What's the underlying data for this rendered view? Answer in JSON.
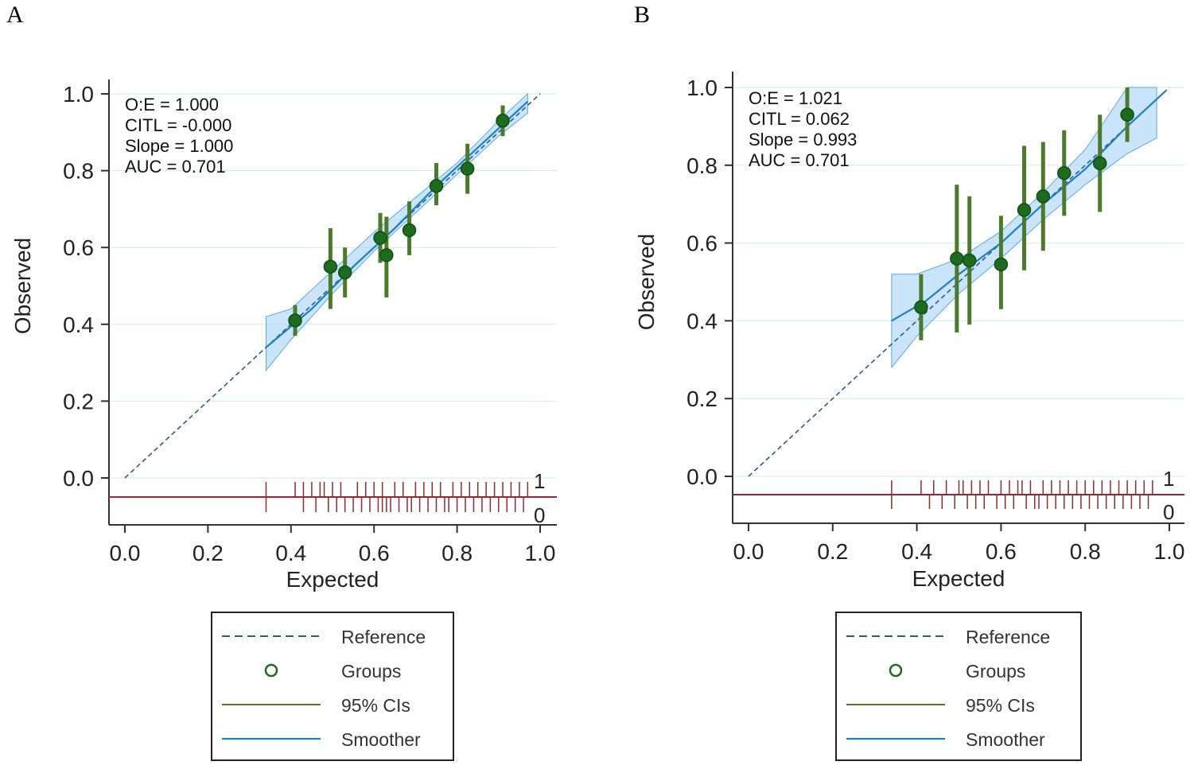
{
  "panels": [
    {
      "letter": "A",
      "chart_data": {
        "type": "scatter",
        "xlabel": "Expected",
        "ylabel": "Observed",
        "xlim": [
          0,
          1
        ],
        "ylim": [
          -0.1,
          1.0
        ],
        "xticks": [
          "0.0",
          "0.2",
          "0.4",
          "0.6",
          "0.8",
          "1.0"
        ],
        "yticks": [
          "0.0",
          "0.2",
          "0.4",
          "0.6",
          "0.8",
          "1.0"
        ],
        "stats": [
          "O:E = 1.000",
          "CITL = -0.000",
          "Slope = 1.000",
          "AUC = 0.701"
        ],
        "reference": [
          [
            0,
            0
          ],
          [
            1,
            1
          ]
        ],
        "smoother": [
          [
            0.34,
            0.34
          ],
          [
            0.45,
            0.44
          ],
          [
            0.55,
            0.55
          ],
          [
            0.65,
            0.65
          ],
          [
            0.75,
            0.76
          ],
          [
            0.85,
            0.86
          ],
          [
            0.97,
            0.98
          ]
        ],
        "smoother_band": {
          "x": [
            0.34,
            0.4,
            0.5,
            0.6,
            0.7,
            0.8,
            0.9,
            0.97
          ],
          "lower": [
            0.28,
            0.36,
            0.48,
            0.59,
            0.69,
            0.79,
            0.89,
            0.95
          ],
          "upper": [
            0.42,
            0.44,
            0.54,
            0.64,
            0.73,
            0.82,
            0.93,
            1.0
          ]
        },
        "groups": [
          {
            "x": 0.41,
            "y": 0.41,
            "lo": 0.37,
            "hi": 0.45
          },
          {
            "x": 0.495,
            "y": 0.55,
            "lo": 0.44,
            "hi": 0.65
          },
          {
            "x": 0.53,
            "y": 0.535,
            "lo": 0.47,
            "hi": 0.6
          },
          {
            "x": 0.615,
            "y": 0.625,
            "lo": 0.56,
            "hi": 0.69
          },
          {
            "x": 0.63,
            "y": 0.58,
            "lo": 0.47,
            "hi": 0.68
          },
          {
            "x": 0.685,
            "y": 0.645,
            "lo": 0.58,
            "hi": 0.72
          },
          {
            "x": 0.75,
            "y": 0.76,
            "lo": 0.71,
            "hi": 0.82
          },
          {
            "x": 0.825,
            "y": 0.805,
            "lo": 0.74,
            "hi": 0.87
          },
          {
            "x": 0.91,
            "y": 0.93,
            "lo": 0.89,
            "hi": 0.97
          }
        ],
        "rug_events": [
          0.34,
          0.41,
          0.43,
          0.45,
          0.47,
          0.48,
          0.5,
          0.52,
          0.56,
          0.58,
          0.6,
          0.62,
          0.65,
          0.67,
          0.7,
          0.72,
          0.74,
          0.76,
          0.79,
          0.81,
          0.83,
          0.85,
          0.87,
          0.89,
          0.91,
          0.93,
          0.95,
          0.97
        ],
        "rug_nonevents": [
          0.34,
          0.43,
          0.46,
          0.49,
          0.51,
          0.53,
          0.55,
          0.57,
          0.59,
          0.61,
          0.62,
          0.63,
          0.64,
          0.66,
          0.68,
          0.69,
          0.71,
          0.73,
          0.75,
          0.77,
          0.78,
          0.8,
          0.82,
          0.84,
          0.86,
          0.88,
          0.9,
          0.92,
          0.94,
          0.96
        ],
        "rug_top_label": "1",
        "rug_bottom_label": "0"
      }
    },
    {
      "letter": "B",
      "chart_data": {
        "type": "scatter",
        "xlabel": "Expected",
        "ylabel": "Observed",
        "xlim": [
          0,
          1
        ],
        "ylim": [
          -0.1,
          1.0
        ],
        "xticks": [
          "0.0",
          "0.2",
          "0.4",
          "0.6",
          "0.8",
          "1.0"
        ],
        "yticks": [
          "0.0",
          "0.2",
          "0.4",
          "0.6",
          "0.8",
          "1.0"
        ],
        "stats": [
          "O:E = 1.021",
          "CITL = 0.062",
          "Slope = 0.993",
          "AUC = 0.701"
        ],
        "reference": [
          [
            0,
            0
          ],
          [
            1,
            1
          ]
        ],
        "smoother": [
          [
            0.34,
            0.4
          ],
          [
            0.42,
            0.45
          ],
          [
            0.5,
            0.52
          ],
          [
            0.6,
            0.6
          ],
          [
            0.7,
            0.7
          ],
          [
            0.8,
            0.79
          ],
          [
            0.9,
            0.9
          ],
          [
            0.99,
            0.99
          ]
        ],
        "smoother_band": {
          "x": [
            0.34,
            0.4,
            0.5,
            0.6,
            0.7,
            0.8,
            0.9,
            0.97
          ],
          "lower": [
            0.28,
            0.36,
            0.47,
            0.56,
            0.66,
            0.75,
            0.83,
            0.87
          ],
          "upper": [
            0.52,
            0.52,
            0.56,
            0.63,
            0.73,
            0.84,
            1.0,
            1.0
          ]
        },
        "groups": [
          {
            "x": 0.41,
            "y": 0.435,
            "lo": 0.35,
            "hi": 0.52
          },
          {
            "x": 0.495,
            "y": 0.56,
            "lo": 0.37,
            "hi": 0.75
          },
          {
            "x": 0.525,
            "y": 0.555,
            "lo": 0.39,
            "hi": 0.72
          },
          {
            "x": 0.6,
            "y": 0.545,
            "lo": 0.43,
            "hi": 0.67
          },
          {
            "x": 0.655,
            "y": 0.685,
            "lo": 0.53,
            "hi": 0.85
          },
          {
            "x": 0.7,
            "y": 0.72,
            "lo": 0.58,
            "hi": 0.86
          },
          {
            "x": 0.75,
            "y": 0.78,
            "lo": 0.67,
            "hi": 0.89
          },
          {
            "x": 0.835,
            "y": 0.805,
            "lo": 0.68,
            "hi": 0.93
          },
          {
            "x": 0.9,
            "y": 0.93,
            "lo": 0.86,
            "hi": 1.0
          }
        ],
        "rug_events": [
          0.34,
          0.41,
          0.44,
          0.47,
          0.5,
          0.51,
          0.53,
          0.55,
          0.57,
          0.6,
          0.62,
          0.64,
          0.65,
          0.67,
          0.7,
          0.72,
          0.74,
          0.76,
          0.78,
          0.8,
          0.82,
          0.84,
          0.86,
          0.88,
          0.9,
          0.92,
          0.94,
          0.96
        ],
        "rug_nonevents": [
          0.34,
          0.43,
          0.46,
          0.49,
          0.52,
          0.54,
          0.56,
          0.59,
          0.61,
          0.63,
          0.66,
          0.68,
          0.69,
          0.71,
          0.73,
          0.75,
          0.77,
          0.79,
          0.81,
          0.83,
          0.85,
          0.87,
          0.89,
          0.91,
          0.93,
          0.95
        ],
        "rug_top_label": "1",
        "rug_bottom_label": "0"
      }
    }
  ],
  "legend": {
    "items": [
      {
        "label": "Reference",
        "kind": "dashed"
      },
      {
        "label": "Groups",
        "kind": "circle"
      },
      {
        "label": "95% CIs",
        "kind": "line-green"
      },
      {
        "label": "Smoother",
        "kind": "line-blue"
      }
    ]
  },
  "colors": {
    "reference": "#2b5a8c",
    "smoother": "#1a7fc8",
    "band": "#9fd0f5",
    "band_edge": "#5aa7e8",
    "ci": "#4b7a2a",
    "group_fill": "#1d6b1f",
    "group_edge": "#0f4f12",
    "rug": "#8f2c2c",
    "rug_line": "#9c2434",
    "grid": "#d6e8e6",
    "axis": "#333333"
  }
}
